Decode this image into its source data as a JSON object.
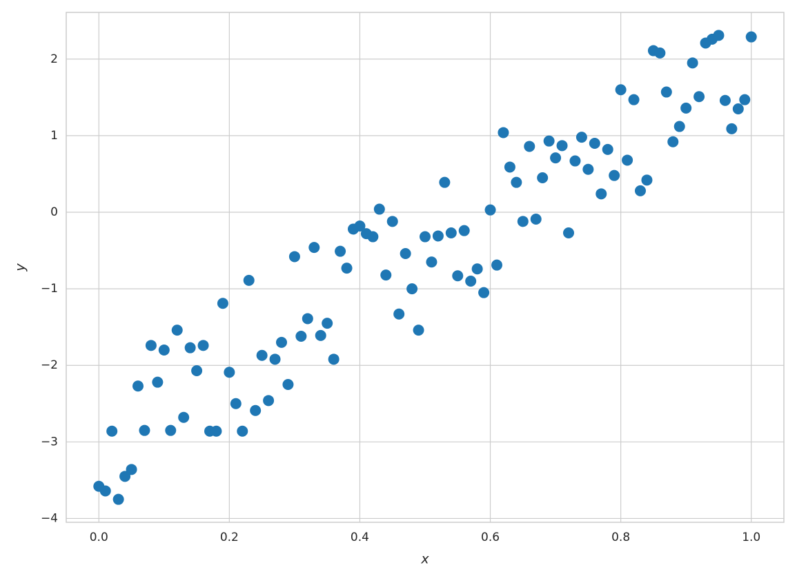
{
  "chart_data": {
    "type": "scatter",
    "x_label": "x",
    "y_label": "y",
    "color": "#1f77b4",
    "grid": true,
    "xlim": [
      -0.05,
      1.05
    ],
    "ylim": [
      -4.05,
      2.61
    ],
    "xticks": [
      {
        "value": 0,
        "label": "0.0"
      },
      0.2,
      0.4,
      0.6,
      0.8,
      {
        "value": 1,
        "label": "1.0"
      }
    ],
    "yticks": [
      {
        "value": -4,
        "label": "−4"
      },
      {
        "value": -3,
        "label": "−3"
      },
      {
        "value": -2,
        "label": "−2"
      },
      {
        "value": -1,
        "label": "−1"
      },
      0,
      1,
      2
    ],
    "x": [
      0,
      0.01,
      0.02,
      0.03,
      0.04,
      0.05,
      0.06,
      0.07,
      0.08,
      0.09,
      0.1,
      0.11,
      0.12,
      0.13,
      0.14,
      0.15,
      0.16,
      0.17,
      0.18,
      0.19,
      0.2,
      0.21,
      0.22,
      0.23,
      0.24,
      0.25,
      0.26,
      0.27,
      0.28,
      0.29,
      0.3,
      0.31,
      0.32,
      0.33,
      0.34,
      0.35,
      0.36,
      0.37,
      0.38,
      0.39,
      0.4,
      0.41,
      0.42,
      0.43,
      0.44,
      0.45,
      0.46,
      0.47,
      0.48,
      0.49,
      0.5,
      0.51,
      0.52,
      0.53,
      0.54,
      0.55,
      0.56,
      0.57,
      0.58,
      0.59,
      0.6,
      0.61,
      0.62,
      0.63,
      0.64,
      0.65,
      0.66,
      0.67,
      0.68,
      0.69,
      0.7,
      0.71,
      0.72,
      0.73,
      0.74,
      0.75,
      0.76,
      0.77,
      0.78,
      0.79,
      0.8,
      0.81,
      0.82,
      0.83,
      0.84,
      0.85,
      0.86,
      0.87,
      0.88,
      0.89,
      0.9,
      0.91,
      0.92,
      0.93,
      0.94,
      0.95,
      0.96,
      0.97,
      0.98,
      0.99,
      1.0
    ],
    "values": [
      -3.58,
      -3.64,
      -2.86,
      -3.75,
      -3.45,
      -3.36,
      -2.27,
      -2.85,
      -1.74,
      -2.22,
      -1.8,
      -2.85,
      -1.54,
      -2.68,
      -1.77,
      -2.07,
      -1.74,
      -2.86,
      -2.86,
      -1.19,
      -2.09,
      -2.5,
      -2.86,
      -0.89,
      -2.59,
      -1.87,
      -2.46,
      -1.92,
      -1.7,
      -2.25,
      -0.58,
      -1.62,
      -1.39,
      -0.46,
      -1.61,
      -1.45,
      -1.92,
      -0.51,
      -0.73,
      -0.22,
      -0.18,
      -0.28,
      -0.32,
      0.04,
      -0.82,
      -0.12,
      -1.33,
      -0.54,
      -1.0,
      -1.54,
      -0.32,
      -0.65,
      -0.31,
      0.39,
      -0.27,
      -0.83,
      -0.24,
      -0.9,
      -0.74,
      -1.05,
      0.03,
      -0.69,
      1.04,
      0.59,
      0.39,
      -0.12,
      0.86,
      -0.09,
      0.45,
      0.93,
      0.71,
      0.87,
      -0.27,
      0.67,
      0.98,
      0.56,
      0.9,
      0.24,
      0.82,
      0.48,
      1.6,
      0.68,
      1.47,
      0.28,
      0.42,
      2.11,
      2.08,
      1.57,
      0.92,
      1.12,
      1.36,
      1.95,
      1.51,
      2.21,
      2.26,
      2.31,
      1.46,
      1.09,
      1.35,
      1.47,
      2.29
    ]
  }
}
